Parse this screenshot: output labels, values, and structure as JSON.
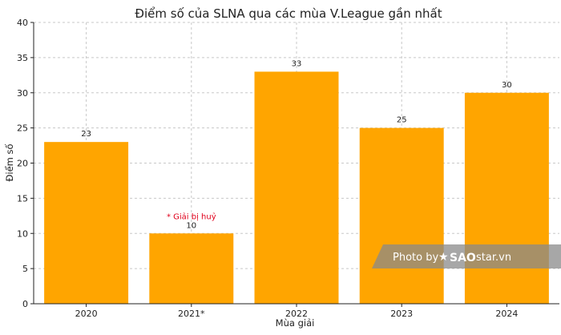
{
  "chart_data": {
    "type": "bar",
    "title": "Điểm số của SLNA qua các mùa V.League gần nhất",
    "xlabel": "Mùa giải",
    "ylabel": "Điểm số",
    "categories": [
      "2020",
      "2021*",
      "2022",
      "2023",
      "2024"
    ],
    "values": [
      23,
      10,
      33,
      25,
      30
    ],
    "ylim": [
      0,
      40
    ],
    "yticks": [
      0,
      5,
      10,
      15,
      20,
      25,
      30,
      35,
      40
    ],
    "grid": true,
    "bar_color": "#FFA500",
    "annotations": [
      {
        "category": "2021*",
        "text": "* Giải bị huỷ",
        "color": "#E0001B"
      }
    ]
  },
  "watermark": {
    "prefix": "Photo by",
    "brand_main": "SAO",
    "brand_rest": "star.vn"
  }
}
